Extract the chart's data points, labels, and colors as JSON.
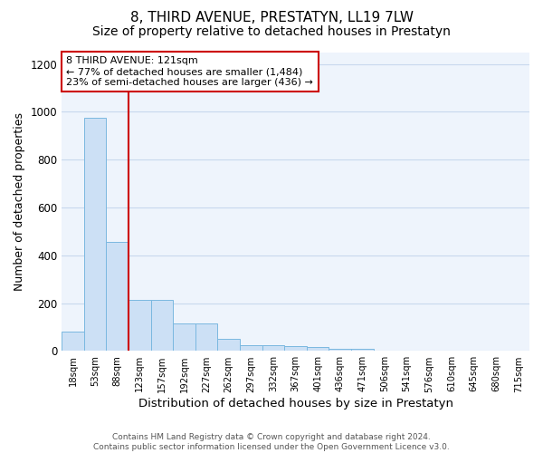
{
  "title": "8, THIRD AVENUE, PRESTATYN, LL19 7LW",
  "subtitle": "Size of property relative to detached houses in Prestatyn",
  "xlabel": "Distribution of detached houses by size in Prestatyn",
  "ylabel": "Number of detached properties",
  "categories": [
    "18sqm",
    "53sqm",
    "88sqm",
    "123sqm",
    "157sqm",
    "192sqm",
    "227sqm",
    "262sqm",
    "297sqm",
    "332sqm",
    "367sqm",
    "401sqm",
    "436sqm",
    "471sqm",
    "506sqm",
    "541sqm",
    "576sqm",
    "610sqm",
    "645sqm",
    "680sqm",
    "715sqm"
  ],
  "values": [
    80,
    975,
    455,
    215,
    215,
    115,
    115,
    50,
    25,
    25,
    20,
    15,
    10,
    10,
    0,
    0,
    0,
    0,
    0,
    0,
    0
  ],
  "bar_color": "#cce0f5",
  "bar_edge_color": "#7ab8e0",
  "background_color": "#ffffff",
  "plot_bg_color": "#eef4fc",
  "grid_color": "#c8d8ed",
  "vline_x": 2.5,
  "vline_color": "#cc0000",
  "annotation_text": "8 THIRD AVENUE: 121sqm\n← 77% of detached houses are smaller (1,484)\n23% of semi-detached houses are larger (436) →",
  "annotation_box_color": "#ffffff",
  "annotation_box_edge": "#cc0000",
  "ylim": [
    0,
    1250
  ],
  "yticks": [
    0,
    200,
    400,
    600,
    800,
    1000,
    1200
  ],
  "footer_text": "Contains HM Land Registry data © Crown copyright and database right 2024.\nContains public sector information licensed under the Open Government Licence v3.0.",
  "title_fontsize": 11,
  "subtitle_fontsize": 10,
  "xlabel_fontsize": 9.5,
  "ylabel_fontsize": 9
}
